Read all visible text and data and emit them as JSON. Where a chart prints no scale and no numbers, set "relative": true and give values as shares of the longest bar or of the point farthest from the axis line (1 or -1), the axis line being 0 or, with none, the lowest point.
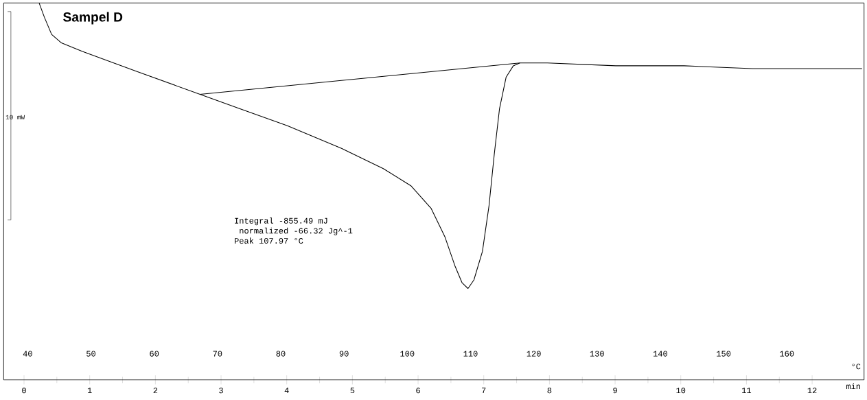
{
  "chart_data": {
    "type": "line",
    "title": "Sampel D",
    "xlabel": "min",
    "x2label": "°C",
    "relative": true,
    "xlim": [
      -0.31,
      12.79
    ],
    "xticks": [
      0,
      1,
      2,
      3,
      4,
      5,
      6,
      7,
      8,
      9,
      10,
      11,
      12
    ],
    "x2lim": [
      36.2,
      172.2
    ],
    "x2ticks": [
      40,
      50,
      60,
      70,
      80,
      90,
      100,
      110,
      120,
      130,
      140,
      150,
      160
    ],
    "series": [
      {
        "color": "#000000",
        "x": [
          0.23,
          0.31,
          0.42,
          0.57,
          0.89,
          1.72,
          2.68,
          3.28,
          4.01,
          4.84,
          5.47,
          5.89,
          6.2,
          6.41,
          6.56,
          6.67,
          6.76,
          6.85,
          6.98,
          7.08,
          7.16,
          7.24,
          7.34,
          7.45,
          7.55,
          7.97,
          9.01,
          10.05,
          11.09,
          12.76
        ],
        "values": [
          1.0,
          0.95,
          0.89,
          0.86,
          0.83,
          0.76,
          0.68,
          0.63,
          0.57,
          0.49,
          0.42,
          0.36,
          0.28,
          0.18,
          0.08,
          0.02,
          0,
          0.03,
          0.13,
          0.29,
          0.47,
          0.63,
          0.74,
          0.78,
          0.79,
          0.79,
          0.78,
          0.78,
          0.77,
          0.77
        ]
      },
      {
        "color": "#000000",
        "x": [
          2.68,
          7.55
        ],
        "values": [
          0.68,
          0.79
        ]
      }
    ],
    "annotations": [
      "10 mW",
      "Integral      -855.49 mJ",
      "  normalized -66.32 Jg^-1",
      "Peak           107.97 °C"
    ]
  }
}
